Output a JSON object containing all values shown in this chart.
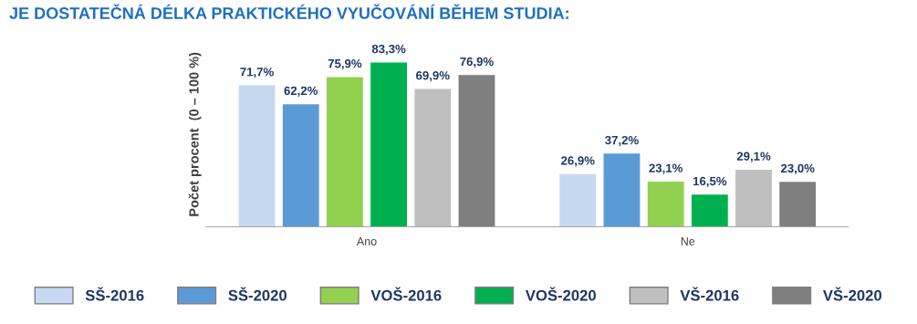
{
  "chart_data": {
    "type": "bar",
    "title": "JE DOSTATEČNÁ DÉLKA PRAKTICKÉHO VYUČOVÁNÍ BĚHEM STUDIA:",
    "ylabel": "Počet procent  (0 – 100 %)",
    "relative": false,
    "categories": [
      "Ano",
      "Ne"
    ],
    "series": [
      {
        "name": "SŠ-2016",
        "color": "#c6d9f1",
        "values": [
          71.7,
          26.9
        ],
        "value_labels": [
          "71,7%",
          "26,9%"
        ]
      },
      {
        "name": "SŠ-2020",
        "color": "#5b9bd5",
        "values": [
          62.2,
          37.2
        ],
        "value_labels": [
          "62,2%",
          "37,2%"
        ]
      },
      {
        "name": "VOŠ-2016",
        "color": "#92d050",
        "values": [
          75.9,
          23.1
        ],
        "value_labels": [
          "75,9%",
          "23,1%"
        ]
      },
      {
        "name": "VOŠ-2020",
        "color": "#00b050",
        "values": [
          83.3,
          16.5
        ],
        "value_labels": [
          "83,3%",
          "16,5%"
        ]
      },
      {
        "name": "VŠ-2016",
        "color": "#bfbfbf",
        "values": [
          69.9,
          29.1
        ],
        "value_labels": [
          "69,9%",
          "29,1%"
        ]
      },
      {
        "name": "VŠ-2020",
        "color": "#7f7f7f",
        "values": [
          76.9,
          23.0
        ],
        "value_labels": [
          "76,9%",
          "23,0%"
        ]
      }
    ],
    "grid": false,
    "legend": "bottom"
  }
}
